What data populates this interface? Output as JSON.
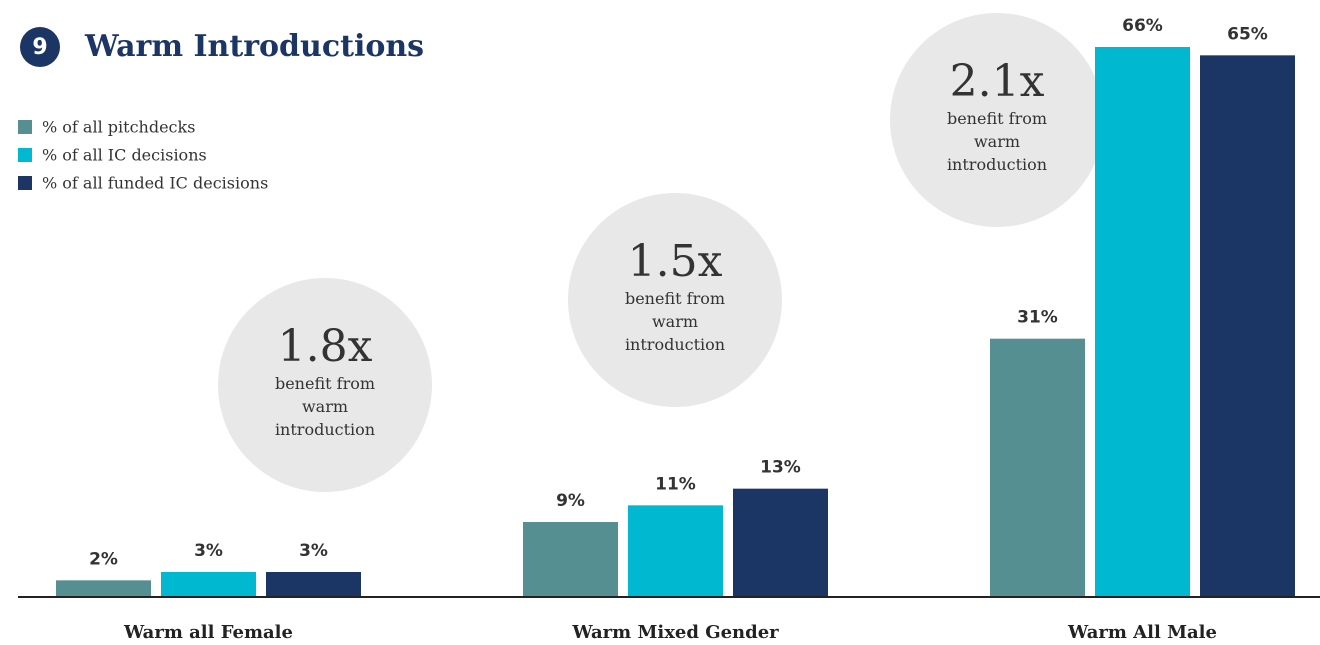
{
  "chart_data": {
    "type": "bar",
    "badge": "9",
    "title": "Warm Introductions",
    "categories": [
      "Warm all Female",
      "Warm Mixed Gender",
      "Warm All Male"
    ],
    "series": [
      {
        "name": "% of all pitchdecks",
        "color": "#558f91",
        "values": [
          2,
          9,
          31
        ],
        "value_labels": [
          "2%",
          "9%",
          "31%"
        ]
      },
      {
        "name": "% of all IC decisions",
        "color": "#00b8d0",
        "values": [
          3,
          11,
          66
        ],
        "value_labels": [
          "3%",
          "11%",
          "66%"
        ]
      },
      {
        "name": "% of all funded IC decisions",
        "color": "#1b3564",
        "values": [
          3,
          13,
          65
        ],
        "value_labels": [
          "3%",
          "13%",
          "65%"
        ]
      }
    ],
    "annotations": [
      {
        "multiplier": "1.8x",
        "text": "benefit from warm introduction"
      },
      {
        "multiplier": "1.5x",
        "text": "benefit from warm introduction"
      },
      {
        "multiplier": "2.1x",
        "text": "benefit from warm introduction"
      }
    ],
    "legend": "top-left"
  }
}
